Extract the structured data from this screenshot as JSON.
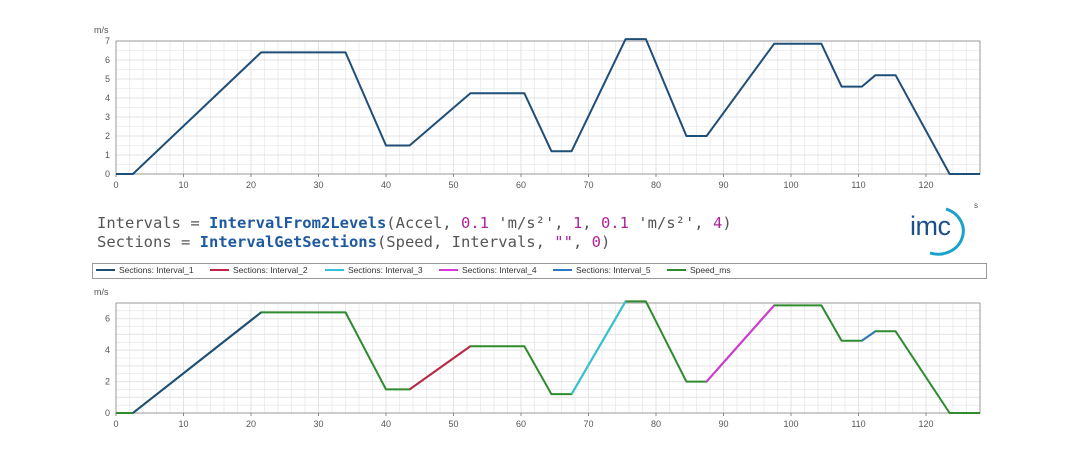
{
  "formula": {
    "line1": {
      "lhs": "Intervals = ",
      "fn": "IntervalFrom2Levels",
      "a0": "(Accel, ",
      "n1": "0.1",
      "a1": " 'm/s²', ",
      "n2": "1",
      "a2": ", ",
      "n3": "0.1",
      "a3": " 'm/s²', ",
      "n4": "4",
      "a4": ")"
    },
    "line2": {
      "lhs": "Sections = ",
      "fn": "IntervalGetSections",
      "a0": "(Speed, Intervals, ",
      "n1": "\"\"",
      "a1": ", ",
      "n2": "0",
      "a2": ")"
    }
  },
  "logo": {
    "text": "imc",
    "superscript": "s"
  },
  "colors": {
    "interval_1": "#1f4e79",
    "interval_2": "#c0254a",
    "interval_3": "#33c2d8",
    "interval_4": "#d63ad6",
    "interval_5": "#2f78c0",
    "speed_ms": "#2e8b2e",
    "grid": "#e3e3e3",
    "frame": "#999999"
  },
  "legend": [
    {
      "label": "Sections: Interval_1",
      "color_key": "interval_1"
    },
    {
      "label": "Sections: Interval_2",
      "color_key": "interval_2"
    },
    {
      "label": "Sections: Interval_3",
      "color_key": "interval_3"
    },
    {
      "label": "Sections: Interval_4",
      "color_key": "interval_4"
    },
    {
      "label": "Sections: Interval_5",
      "color_key": "interval_5"
    },
    {
      "label": "Speed_ms",
      "color_key": "speed_ms"
    }
  ],
  "chart_data": [
    {
      "type": "line",
      "ylabel": "m/s",
      "xlim": [
        0,
        128
      ],
      "ylim": [
        0,
        7
      ],
      "xticks": [
        0,
        10,
        20,
        30,
        40,
        50,
        60,
        70,
        80,
        90,
        100,
        110,
        120
      ],
      "yticks": [
        0,
        1,
        2,
        3,
        4,
        5,
        6,
        7
      ],
      "grid": true,
      "series": [
        {
          "color_key": "interval_1",
          "x": [
            0,
            2.5,
            21.5,
            34,
            40,
            43.5,
            52.5,
            60.5,
            64.5,
            67.5,
            75.5,
            78.5,
            84.5,
            87.5,
            97.5,
            104.5,
            107.5,
            110.5,
            112.5,
            115.5,
            123.5,
            128
          ],
          "y": [
            0,
            0,
            6.4,
            6.4,
            1.5,
            1.5,
            4.25,
            4.25,
            1.2,
            1.2,
            7.1,
            7.1,
            2,
            2,
            6.85,
            6.85,
            4.6,
            4.6,
            5.2,
            5.2,
            0,
            0
          ]
        }
      ]
    },
    {
      "type": "line",
      "ylabel": "m/s",
      "xlim": [
        0,
        128
      ],
      "ylim": [
        0,
        7
      ],
      "xticks": [
        0,
        10,
        20,
        30,
        40,
        50,
        60,
        70,
        80,
        90,
        100,
        110,
        120
      ],
      "yticks": [
        0,
        2,
        4,
        6
      ],
      "grid": true,
      "series": [
        {
          "name": "Speed_ms",
          "color_key": "speed_ms",
          "x": [
            0,
            2.5,
            21.5,
            34,
            40,
            43.5,
            52.5,
            60.5,
            64.5,
            67.5,
            75.5,
            78.5,
            84.5,
            87.5,
            97.5,
            104.5,
            107.5,
            110.5,
            112.5,
            115.5,
            123.5,
            128
          ],
          "y": [
            0,
            0,
            6.4,
            6.4,
            1.5,
            1.5,
            4.25,
            4.25,
            1.2,
            1.2,
            7.1,
            7.1,
            2,
            2,
            6.85,
            6.85,
            4.6,
            4.6,
            5.2,
            5.2,
            0,
            0
          ]
        },
        {
          "name": "Sections: Interval_1",
          "color_key": "interval_1",
          "x": [
            2.5,
            21.5
          ],
          "y": [
            0,
            6.4
          ]
        },
        {
          "name": "Sections: Interval_2",
          "color_key": "interval_2",
          "x": [
            43.5,
            52.5
          ],
          "y": [
            1.5,
            4.25
          ]
        },
        {
          "name": "Sections: Interval_3",
          "color_key": "interval_3",
          "x": [
            67.5,
            75.5
          ],
          "y": [
            1.2,
            7.1
          ]
        },
        {
          "name": "Sections: Interval_4",
          "color_key": "interval_4",
          "x": [
            87.5,
            97.5
          ],
          "y": [
            2,
            6.85
          ]
        },
        {
          "name": "Sections: Interval_5",
          "color_key": "interval_5",
          "x": [
            110.5,
            112.5
          ],
          "y": [
            4.6,
            5.2
          ]
        }
      ]
    }
  ]
}
